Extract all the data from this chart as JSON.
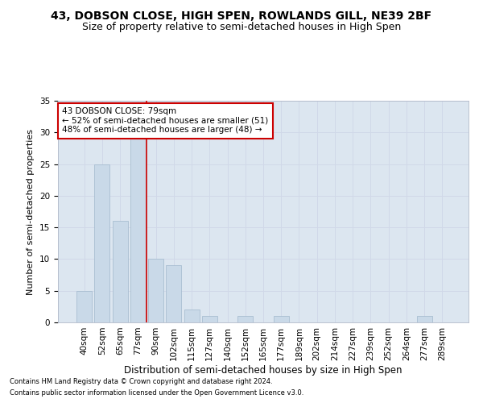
{
  "title1": "43, DOBSON CLOSE, HIGH SPEN, ROWLANDS GILL, NE39 2BF",
  "title2": "Size of property relative to semi-detached houses in High Spen",
  "xlabel": "Distribution of semi-detached houses by size in High Spen",
  "ylabel": "Number of semi-detached properties",
  "footnote1": "Contains HM Land Registry data © Crown copyright and database right 2024.",
  "footnote2": "Contains public sector information licensed under the Open Government Licence v3.0.",
  "bar_labels": [
    "40sqm",
    "52sqm",
    "65sqm",
    "77sqm",
    "90sqm",
    "102sqm",
    "115sqm",
    "127sqm",
    "140sqm",
    "152sqm",
    "165sqm",
    "177sqm",
    "189sqm",
    "202sqm",
    "214sqm",
    "227sqm",
    "239sqm",
    "252sqm",
    "264sqm",
    "277sqm",
    "289sqm"
  ],
  "bar_values": [
    5,
    25,
    16,
    29,
    10,
    9,
    2,
    1,
    0,
    1,
    0,
    1,
    0,
    0,
    0,
    0,
    0,
    0,
    0,
    1,
    0
  ],
  "bar_color": "#c9d9e8",
  "bar_edge_color": "#a0b8cc",
  "vline_index": 3.5,
  "vline_color": "#cc0000",
  "annotation_text": "43 DOBSON CLOSE: 79sqm\n← 52% of semi-detached houses are smaller (51)\n48% of semi-detached houses are larger (48) →",
  "annotation_box_color": "#ffffff",
  "annotation_box_edge": "#cc0000",
  "ylim": [
    0,
    35
  ],
  "yticks": [
    0,
    5,
    10,
    15,
    20,
    25,
    30,
    35
  ],
  "grid_color": "#d0d8e8",
  "bg_color": "#dce6f0",
  "title1_fontsize": 10,
  "title2_fontsize": 9,
  "xlabel_fontsize": 8.5,
  "ylabel_fontsize": 8,
  "tick_fontsize": 7.5,
  "annot_fontsize": 7.5,
  "footnote_fontsize": 6
}
